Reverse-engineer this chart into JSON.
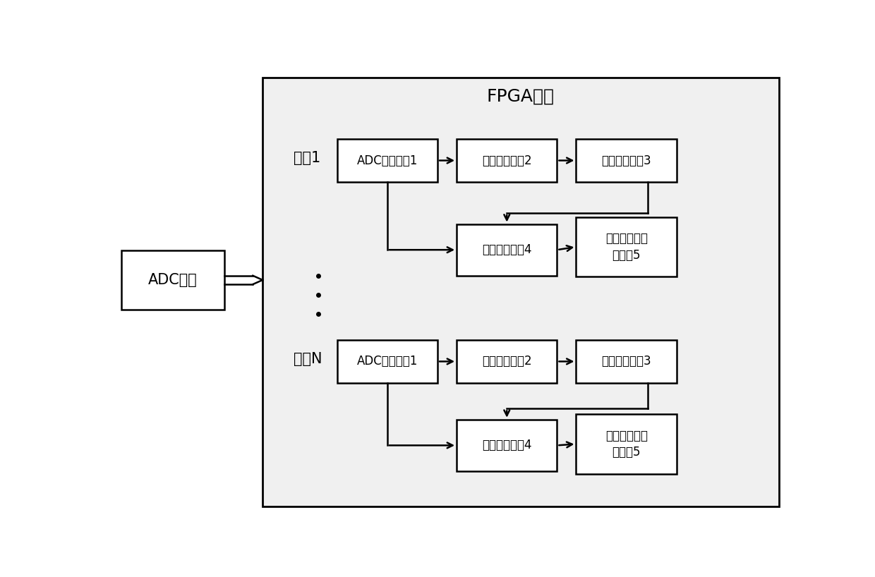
{
  "title": "FPGA器件",
  "adc_label": "ADC器件",
  "channel1_label": "通道1",
  "channelN_label": "通道N",
  "blocks": {
    "adc_sample1": "ADC采样模块1",
    "data_accum2": "数据累加模块2",
    "grating_pos3": "光栅定位模块3",
    "spectrum_splice4": "光谱拼接模块4",
    "grating_demod5": "光栅解调及发\n送模块5"
  },
  "bg_color": "#ffffff",
  "box_color": "#ffffff",
  "box_edge": "#000000",
  "text_color": "#000000",
  "fpga_bg": "#f0f0f0",
  "font_size_title": 18,
  "font_size_label": 15,
  "font_size_block": 12
}
